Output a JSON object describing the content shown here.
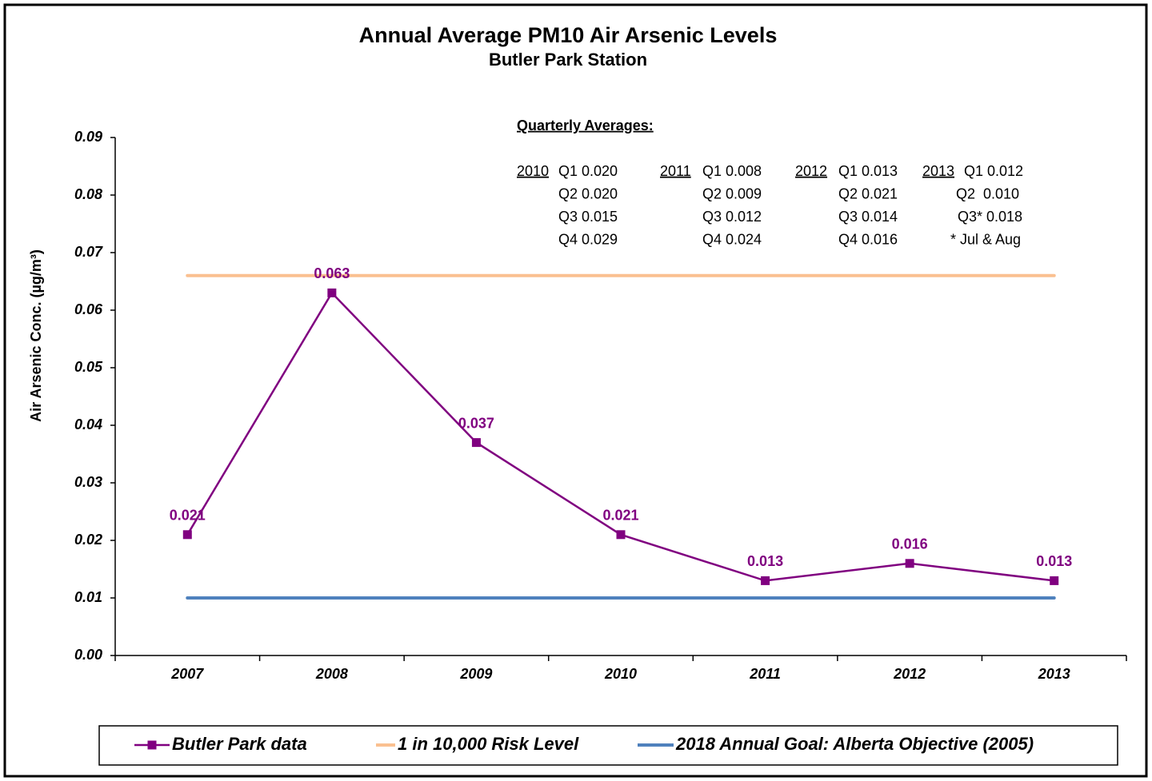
{
  "chart_data": {
    "type": "line",
    "title": "Annual Average PM10 Air Arsenic Levels",
    "subtitle": "Butler Park Station",
    "ylabel": "Air Arsenic Conc. (µg/m³)",
    "categories": [
      "2007",
      "2008",
      "2009",
      "2010",
      "2011",
      "2012",
      "2013"
    ],
    "series": [
      {
        "name": "Butler Park data",
        "color": "#800080",
        "values": [
          0.021,
          0.063,
          0.037,
          0.021,
          0.013,
          0.016,
          0.013
        ]
      },
      {
        "name": "1 in 10,000 Risk Level",
        "color": "#fac090",
        "values": [
          0.066,
          0.066,
          0.066,
          0.066,
          0.066,
          0.066,
          0.066
        ]
      },
      {
        "name": "2018 Annual Goal: Alberta Objective (2005)",
        "color": "#4f81bd",
        "values": [
          0.01,
          0.01,
          0.01,
          0.01,
          0.01,
          0.01,
          0.01
        ]
      }
    ],
    "ylim": [
      0,
      0.09
    ],
    "yticks": [
      {
        "value": 0,
        "label": "0.00"
      },
      0.01,
      0.02,
      0.03,
      0.04,
      0.05,
      0.06,
      0.07,
      0.08,
      0.09
    ],
    "annotation": {
      "title": "Quarterly Averages:",
      "columns": [
        {
          "year": "2010",
          "lines": [
            "Q1 0.020",
            "Q2 0.020",
            "Q3 0.015",
            "Q4 0.029"
          ]
        },
        {
          "year": "2011",
          "lines": [
            "Q1 0.008",
            "Q2 0.009",
            "Q3 0.012",
            "Q4 0.024"
          ]
        },
        {
          "year": "2012",
          "lines": [
            "Q1 0.013",
            "Q2 0.021",
            "Q3 0.014",
            "Q4 0.016"
          ]
        },
        {
          "year": "2013",
          "lines": [
            "Q1 0.012",
            "Q2  0.010",
            "Q3* 0.018",
            "* Jul & Aug"
          ]
        }
      ]
    },
    "legend": "bottom"
  }
}
